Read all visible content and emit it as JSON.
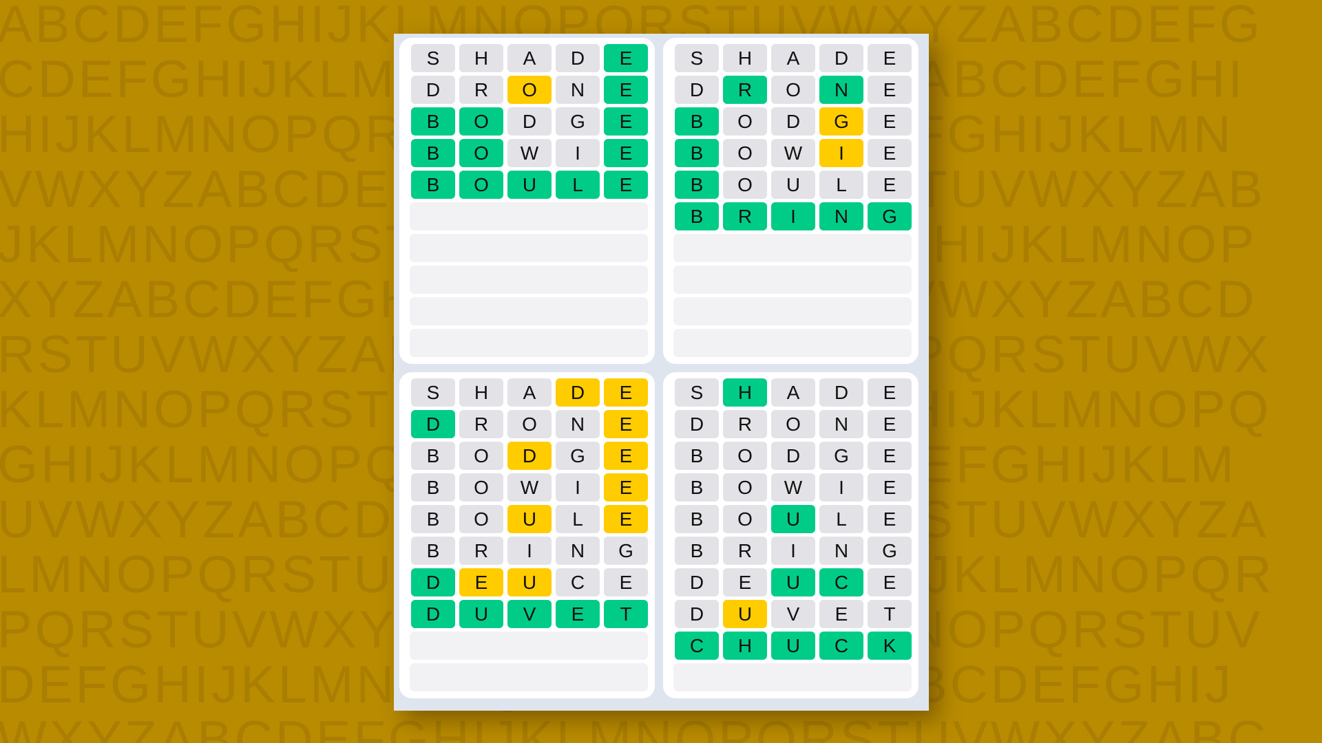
{
  "background": {
    "color": "#b98b00",
    "letter_rows": [
      "ABCDEFGHIJKLMNOPQRSTUVWXYZABCDEFG",
      "CDEFGHIJKLMNOPQRSTUVWXYZABCDEFGHI",
      "HIJKLMNOPQRSTUVWXYZABCDEFGHIJKLMN",
      "VWXYZABCDEFGHIJKLMNOPQRSTUVWXYZAB",
      "JKLMNOPQRSTUVWXYZABCDEFGHIJKLMNOP",
      "XYZABCDEFGHIJKLMNOPQRSTUVWXYZABCD",
      "RSTUVWXYZABCDEFGHIJKLMNOPQRSTUVWX",
      "KLMNOPQRSTUVWXYZABCDEFGHIJKLMNOPQ",
      "GHIJKLMNOPQRSTUVWXYZABCDEFGHIJKLM",
      "UVWXYZABCDEFGHIJKLMNOPQRSTUVWXYZA",
      "LMNOPQRSTUVWXYZABCDEFGHIJKLMNOPQR",
      "PQRSTUVWXYZABCDEFGHIJKLMNOPQRSTUV",
      "DEFGHIJKLMNOPQRSTUVWXYZABCDEFGHIJ",
      "WXYZABCDEFGHIJKLMNOPQRSTUVWXYZABC"
    ]
  },
  "colors": {
    "correct": "#00cc88",
    "present": "#ffcc00",
    "absent": "#e2e2e7",
    "empty": "#f2f2f5"
  },
  "total_rows": 10,
  "boards": [
    {
      "guesses": [
        {
          "word": "SHADE",
          "states": "----g"
        },
        {
          "word": "DRONE",
          "states": "--y-g"
        },
        {
          "word": "BODGE",
          "states": "gg--g"
        },
        {
          "word": "BOWIE",
          "states": "gg--g"
        },
        {
          "word": "BOULE",
          "states": "ggggg"
        }
      ]
    },
    {
      "guesses": [
        {
          "word": "SHADE",
          "states": "-----"
        },
        {
          "word": "DRONE",
          "states": "-g-g-"
        },
        {
          "word": "BODGE",
          "states": "g--y-"
        },
        {
          "word": "BOWIE",
          "states": "g--y-"
        },
        {
          "word": "BOULE",
          "states": "g----"
        },
        {
          "word": "BRING",
          "states": "ggggg"
        }
      ]
    },
    {
      "guesses": [
        {
          "word": "SHADE",
          "states": "---yy"
        },
        {
          "word": "DRONE",
          "states": "g---y"
        },
        {
          "word": "BODGE",
          "states": "--y-y"
        },
        {
          "word": "BOWIE",
          "states": "----y"
        },
        {
          "word": "BOULE",
          "states": "--y-y"
        },
        {
          "word": "BRING",
          "states": "-----"
        },
        {
          "word": "DEUCE",
          "states": "gyy--"
        },
        {
          "word": "DUVET",
          "states": "ggggg"
        }
      ]
    },
    {
      "guesses": [
        {
          "word": "SHADE",
          "states": "-g---"
        },
        {
          "word": "DRONE",
          "states": "-----"
        },
        {
          "word": "BODGE",
          "states": "-----"
        },
        {
          "word": "BOWIE",
          "states": "-----"
        },
        {
          "word": "BOULE",
          "states": "--g--"
        },
        {
          "word": "BRING",
          "states": "-----"
        },
        {
          "word": "DEUCE",
          "states": "--gg-"
        },
        {
          "word": "DUVET",
          "states": "-y---"
        },
        {
          "word": "CHUCK",
          "states": "ggggg"
        }
      ]
    }
  ]
}
